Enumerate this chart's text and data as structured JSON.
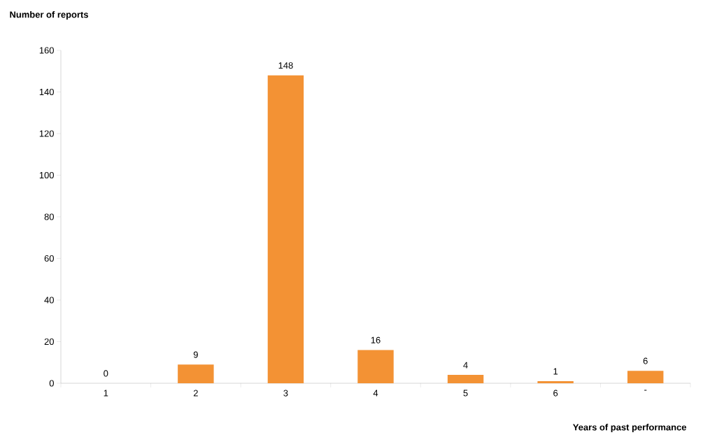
{
  "chart_data": {
    "type": "bar",
    "xlabel": "Years of past performance",
    "ylabel": "Number of reports",
    "categories": [
      "1",
      "2",
      "3",
      "4",
      "5",
      "6",
      "-"
    ],
    "values": [
      0,
      9,
      148,
      16,
      4,
      1,
      6
    ],
    "color": "#f39234",
    "ylim": [
      0,
      160
    ],
    "yticks": [
      0,
      20,
      40,
      60,
      80,
      100,
      120,
      140,
      160
    ],
    "data_labels": true
  }
}
